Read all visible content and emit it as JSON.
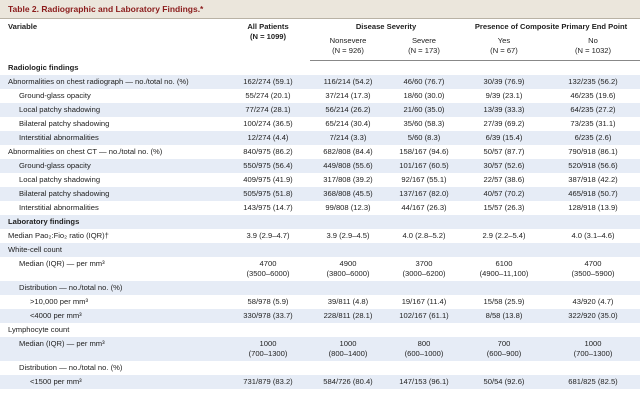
{
  "title": "Table 2. Radiographic and Laboratory Findings.*",
  "header": {
    "variable": "Variable",
    "all_patients": {
      "label": "All Patients",
      "n": "(N = 1099)"
    },
    "severity": {
      "label": "Disease Severity",
      "groups": [
        {
          "label": "Nonsevere",
          "n": "(N = 926)"
        },
        {
          "label": "Severe",
          "n": "(N = 173)"
        }
      ]
    },
    "end_point": {
      "label": "Presence of Composite Primary End Point",
      "groups": [
        {
          "label": "Yes",
          "n": "(N = 67)"
        },
        {
          "label": "No",
          "n": "(N = 1032)"
        }
      ]
    }
  },
  "sections": [
    {
      "title": "Radiologic findings",
      "rows": [
        {
          "label": "Abnormalities on chest radiograph — no./total no. (%)",
          "values": [
            "162/274 (59.1)",
            "116/214 (54.2)",
            "46/60 (76.7)",
            "30/39 (76.9)",
            "132/235 (56.2)"
          ],
          "rows": [
            {
              "label": "Ground-glass opacity",
              "values": [
                "55/274 (20.1)",
                "37/214 (17.3)",
                "18/60 (30.0)",
                "9/39 (23.1)",
                "46/235 (19.6)"
              ]
            },
            {
              "label": "Local patchy shadowing",
              "values": [
                "77/274 (28.1)",
                "56/214 (26.2)",
                "21/60 (35.0)",
                "13/39 (33.3)",
                "64/235 (27.2)"
              ]
            },
            {
              "label": "Bilateral patchy shadowing",
              "values": [
                "100/274 (36.5)",
                "65/214 (30.4)",
                "35/60 (58.3)",
                "27/39 (69.2)",
                "73/235 (31.1)"
              ]
            },
            {
              "label": "Interstitial abnormalities",
              "values": [
                "12/274 (4.4)",
                "7/214 (3.3)",
                "5/60 (8.3)",
                "6/39 (15.4)",
                "6/235 (2.6)"
              ]
            }
          ]
        },
        {
          "label": "Abnormalities on chest CT — no./total no. (%)",
          "values": [
            "840/975 (86.2)",
            "682/808 (84.4)",
            "158/167 (94.6)",
            "50/57 (87.7)",
            "790/918 (86.1)"
          ],
          "rows": [
            {
              "label": "Ground-glass opacity",
              "values": [
                "550/975 (56.4)",
                "449/808 (55.6)",
                "101/167 (60.5)",
                "30/57 (52.6)",
                "520/918 (56.6)"
              ]
            },
            {
              "label": "Local patchy shadowing",
              "values": [
                "409/975 (41.9)",
                "317/808 (39.2)",
                "92/167 (55.1)",
                "22/57 (38.6)",
                "387/918 (42.2)"
              ]
            },
            {
              "label": "Bilateral patchy shadowing",
              "values": [
                "505/975 (51.8)",
                "368/808 (45.5)",
                "137/167 (82.0)",
                "40/57 (70.2)",
                "465/918 (50.7)"
              ]
            },
            {
              "label": "Interstitial abnormalities",
              "values": [
                "143/975 (14.7)",
                "99/808 (12.3)",
                "44/167 (26.3)",
                "15/57 (26.3)",
                "128/918 (13.9)"
              ]
            }
          ]
        }
      ]
    },
    {
      "title": "Laboratory findings",
      "rows": [
        {
          "label": "Median Pao₂:Fio₂ ratio (IQR)†",
          "values": [
            "3.9 (2.9–4.7)",
            "3.9 (2.9–4.5)",
            "4.0 (2.8–5.2)",
            "2.9 (2.2–5.4)",
            "4.0 (3.1–4.6)"
          ]
        },
        {
          "label": "White-cell count",
          "rows": [
            {
              "label": "Median (IQR) — per mm³",
              "values": [
                "4700\n(3500–6000)",
                "4900\n(3800–6000)",
                "3700\n(3000–6200)",
                "6100\n(4900–11,100)",
                "4700\n(3500–5900)"
              ]
            },
            {
              "label": "Distribution — no./total no. (%)",
              "rows": [
                {
                  "label": ">10,000 per mm³",
                  "values": [
                    "58/978 (5.9)",
                    "39/811 (4.8)",
                    "19/167 (11.4)",
                    "15/58 (25.9)",
                    "43/920 (4.7)"
                  ]
                },
                {
                  "label": "<4000 per mm³",
                  "values": [
                    "330/978 (33.7)",
                    "228/811 (28.1)",
                    "102/167 (61.1)",
                    "8/58 (13.8)",
                    "322/920 (35.0)"
                  ]
                }
              ]
            }
          ]
        },
        {
          "label": "Lymphocyte count",
          "rows": [
            {
              "label": "Median (IQR) — per mm³",
              "values": [
                "1000\n(700–1300)",
                "1000\n(800–1400)",
                "800\n(600–1000)",
                "700\n(600–900)",
                "1000\n(700–1300)"
              ]
            },
            {
              "label": "Distribution — no./total no. (%)",
              "rows": [
                {
                  "label": "<1500 per mm³",
                  "values": [
                    "731/879 (83.2)",
                    "584/726 (80.4)",
                    "147/153 (96.1)",
                    "50/54 (92.6)",
                    "681/825 (82.5)"
                  ]
                }
              ]
            }
          ]
        }
      ]
    }
  ]
}
